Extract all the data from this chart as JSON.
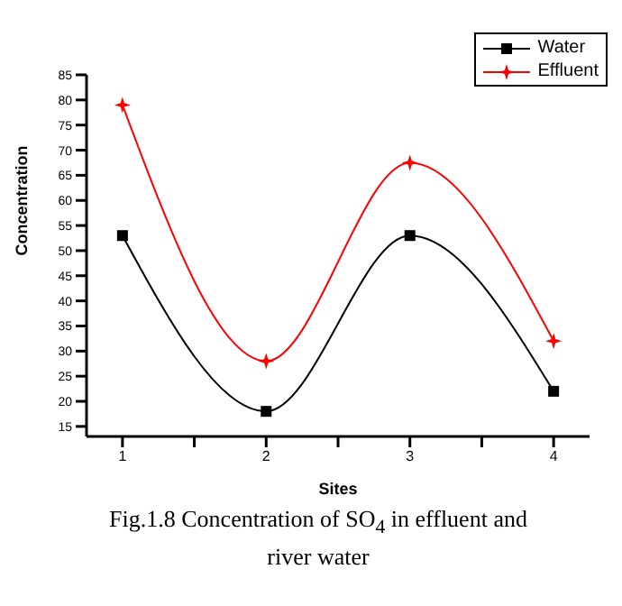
{
  "chart_data": {
    "type": "line",
    "xlabel": "Sites",
    "ylabel": "Concentration",
    "x": [
      1,
      2,
      3,
      4
    ],
    "series": [
      {
        "name": "Water",
        "color": "#000000",
        "marker": "square",
        "values": [
          53,
          18,
          53,
          22
        ]
      },
      {
        "name": "Effluent",
        "color": "#ff0000",
        "marker": "star",
        "values": [
          79,
          28,
          67.5,
          32
        ]
      }
    ],
    "xlim": [
      0.75,
      4.25
    ],
    "xticks": [
      1,
      {
        "value": 1.5,
        "label": null
      },
      2,
      {
        "value": 2.5,
        "label": null
      },
      3,
      {
        "value": 3.5,
        "label": null
      },
      4
    ],
    "ylim": [
      13,
      85
    ],
    "yticks": [
      15,
      20,
      25,
      30,
      35,
      40,
      45,
      50,
      55,
      60,
      65,
      70,
      75,
      80,
      85
    ],
    "legend": "top right",
    "grid": false,
    "annotations": [
      "Fig.1.8 Concentration of SO$_{4}$ in effluent and river water"
    ]
  }
}
